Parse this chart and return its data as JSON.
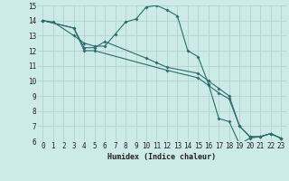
{
  "title": "",
  "xlabel": "Humidex (Indice chaleur)",
  "background_color": "#cceae7",
  "grid_color": "#b0d4d0",
  "line_color": "#2e6b6b",
  "xlim": [
    -0.5,
    23.5
  ],
  "ylim": [
    6,
    15
  ],
  "xticks": [
    0,
    1,
    2,
    3,
    4,
    5,
    6,
    7,
    8,
    9,
    10,
    11,
    12,
    13,
    14,
    15,
    16,
    17,
    18,
    19,
    20,
    21,
    22,
    23
  ],
  "yticks": [
    6,
    7,
    8,
    9,
    10,
    11,
    12,
    13,
    14,
    15
  ],
  "line1_x": [
    0,
    1,
    3,
    4,
    5,
    6,
    7,
    8,
    9,
    10,
    11,
    12,
    13,
    14,
    15,
    16,
    17,
    18,
    19,
    20,
    21,
    22,
    23
  ],
  "line1_y": [
    14.0,
    13.9,
    13.0,
    12.5,
    12.3,
    12.3,
    13.1,
    13.9,
    14.1,
    14.9,
    15.0,
    14.7,
    14.3,
    12.0,
    11.6,
    9.8,
    7.5,
    7.3,
    5.8,
    6.2,
    6.3,
    6.5,
    6.2
  ],
  "line2_x": [
    0,
    3,
    4,
    5,
    6,
    10,
    11,
    12,
    15,
    16,
    17,
    18,
    19,
    20,
    21,
    22,
    23
  ],
  "line2_y": [
    14.0,
    13.5,
    12.2,
    12.2,
    12.6,
    11.5,
    11.2,
    10.9,
    10.5,
    10.0,
    9.5,
    9.0,
    7.0,
    6.3,
    6.3,
    6.5,
    6.2
  ],
  "line3_x": [
    0,
    3,
    4,
    5,
    12,
    15,
    16,
    17,
    18,
    19,
    20,
    21,
    22,
    23
  ],
  "line3_y": [
    14.0,
    13.5,
    12.0,
    12.0,
    10.7,
    10.2,
    9.7,
    9.2,
    8.8,
    7.0,
    6.3,
    6.3,
    6.5,
    6.2
  ]
}
